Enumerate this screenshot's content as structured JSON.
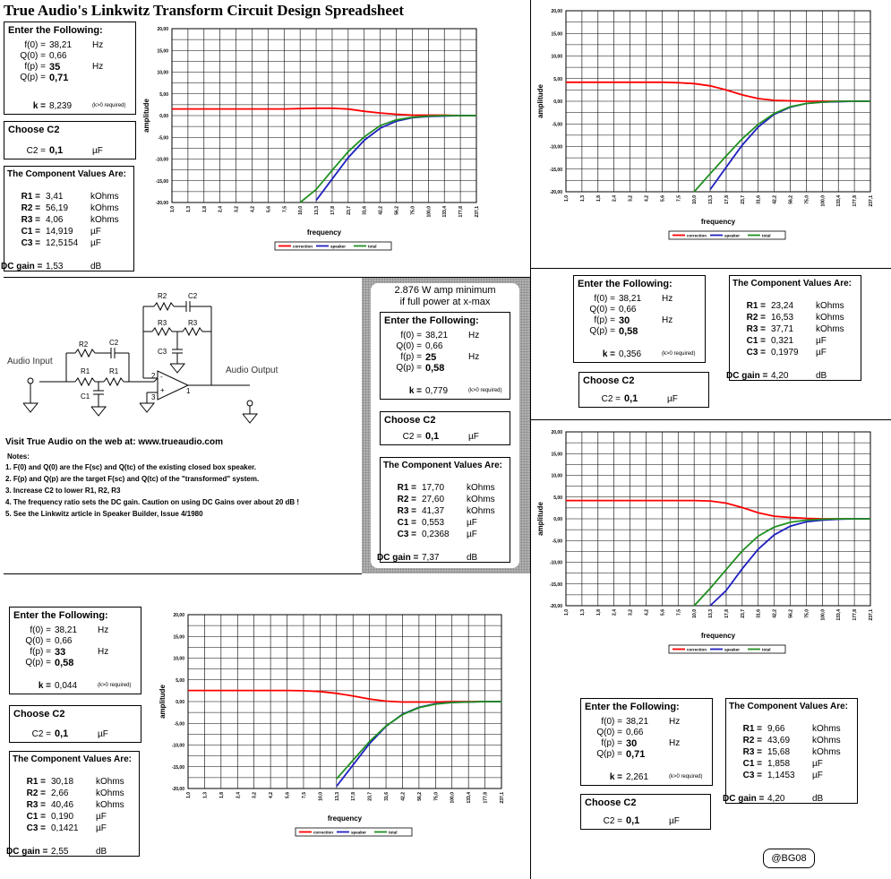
{
  "title": "True Audio's Linkwitz Transform Circuit Design Spreadsheet",
  "labels": {
    "enter": "Enter the Following:",
    "choose": "Choose C2",
    "components": "The Component Values Are:",
    "f0": "f(0) =",
    "q0": "Q(0) =",
    "fp": "f(p) =",
    "qp": "Q(p) =",
    "k": "k =",
    "k_req": "(k>0 required)",
    "c2": "C2 =",
    "r1": "R1 =",
    "r2": "R2 =",
    "r3": "R3 =",
    "c1": "C1 =",
    "c3": "C3 =",
    "dc": "DC gain =",
    "hz": "Hz",
    "kohm": "kOhms",
    "uf": "µF",
    "db": "dB",
    "xlabel": "frequency",
    "ylabel": "amplitude",
    "legend": [
      "correction",
      "speaker",
      "total"
    ]
  },
  "designs": [
    {
      "f0": "38,21",
      "q0": "0,66",
      "fp": "35",
      "qp": "0,71",
      "k": "8,239",
      "c2": "0,1",
      "r1": "3,41",
      "r2": "56,19",
      "r3": "4,06",
      "c1": "14,919",
      "c3": "12,5154",
      "dc": "1,53"
    },
    {
      "f0": "38,21",
      "q0": "0,66",
      "fp": "25",
      "qp": "0,58",
      "k": "0,779",
      "c2": "0,1",
      "r1": "17,70",
      "r2": "27,60",
      "r3": "41,37",
      "c1": "0,553",
      "c3": "0,2368",
      "dc": "7,37"
    },
    {
      "f0": "38,21",
      "q0": "0,66",
      "fp": "30",
      "qp": "0,58",
      "k": "0,356",
      "c2": "0,1",
      "r1": "23,24",
      "r2": "16,53",
      "r3": "37,71",
      "c1": "0,321",
      "c3": "0,1979",
      "dc": "4,20"
    },
    {
      "f0": "38,21",
      "q0": "0,66",
      "fp": "30",
      "qp": "0,71",
      "k": "2,261",
      "c2": "0,1",
      "r1": "9,66",
      "r2": "43,69",
      "r3": "15,68",
      "c1": "1,858",
      "c3": "1,1453",
      "dc": "4,20"
    },
    {
      "f0": "38,21",
      "q0": "0,66",
      "fp": "33",
      "qp": "0,58",
      "k": "0,044",
      "c2": "0,1",
      "r1": "30,18",
      "r2": "2,66",
      "r3": "40,46",
      "c1": "0,190",
      "c3": "0,1421",
      "dc": "2,55"
    }
  ],
  "amp_note": [
    "2.876 W amp minimum",
    "if full power at x-max"
  ],
  "schematic": {
    "audio_input": "Audio Input",
    "audio_output": "Audio Output",
    "r1": "R1",
    "r2": "R2",
    "r3": "R3",
    "c1": "C1",
    "c2": "C2",
    "c3": "C3",
    "pin2": "2",
    "pin3": "3",
    "pin1": "1",
    "minus": "-",
    "plus": "+"
  },
  "visit": "Visit True Audio on the web at:  www.trueaudio.com",
  "notes_title": "Notes:",
  "notes": [
    "1. F(0) and Q(0) are the F(sc) and Q(tc) of the existing closed box speaker.",
    "2. F(p) and Q(p) are the target F(sc) and Q(tc) of the \"transformed\" system.",
    "3. Increase C2 to lower R1, R2, R3",
    "4. The frequency ratio sets the DC gain. Caution on using DC Gains over about 20 dB !",
    "5. See the Linkwitz article in Speaker Builder, Issue 4/1980"
  ],
  "signature": "@BG08",
  "chart_data": [
    {
      "type": "line",
      "x": [
        "1,0",
        "1,3",
        "1,8",
        "2,4",
        "3,2",
        "4,2",
        "5,6",
        "7,5",
        "10,0",
        "13,3",
        "17,8",
        "23,7",
        "31,6",
        "42,2",
        "56,2",
        "75,0",
        "100,0",
        "133,4",
        "177,8",
        "237,1"
      ],
      "y_ticks": [
        "20,00",
        "15,00",
        "10,00",
        "5,00",
        "0,00",
        "-5,00",
        "-10,00",
        "-15,00",
        "-20,00"
      ],
      "ylim": [
        -20,
        20
      ],
      "xlabel": "frequency",
      "ylabel": "amplitude",
      "series": [
        {
          "name": "correction",
          "values": [
            1.53,
            1.53,
            1.53,
            1.53,
            1.53,
            1.53,
            1.53,
            1.53,
            1.6,
            1.7,
            1.7,
            1.5,
            1.0,
            0.6,
            0.3,
            0.1,
            0.1,
            0.1,
            0,
            0
          ]
        },
        {
          "name": "speaker",
          "values": [
            null,
            null,
            null,
            null,
            null,
            null,
            null,
            null,
            null,
            -19.5,
            -14.6,
            -9.7,
            -5.7,
            -2.9,
            -1.3,
            -0.5,
            -0.2,
            -0.1,
            0,
            0
          ]
        },
        {
          "name": "total",
          "values": [
            null,
            null,
            null,
            null,
            null,
            null,
            null,
            null,
            -20,
            -17,
            -12.6,
            -8.3,
            -4.9,
            -2.3,
            -1.0,
            -0.4,
            -0.1,
            0,
            0,
            0
          ]
        }
      ]
    },
    {
      "type": "line",
      "x": [
        "1,0",
        "1,3",
        "1,8",
        "2,4",
        "3,2",
        "4,2",
        "5,6",
        "7,5",
        "10,0",
        "13,3",
        "17,8",
        "23,7",
        "31,6",
        "42,2",
        "56,2",
        "75,0",
        "100,0",
        "133,4",
        "177,8",
        "237,1"
      ],
      "y_ticks": [
        "20,00",
        "15,00",
        "10,00",
        "5,00",
        "0,00",
        "-5,00",
        "-10,00",
        "-15,00",
        "-20,00"
      ],
      "ylim": [
        -20,
        20
      ],
      "xlabel": "frequency",
      "ylabel": "amplitude",
      "series": [
        {
          "name": "correction",
          "values": [
            4.2,
            4.2,
            4.2,
            4.2,
            4.2,
            4.2,
            4.2,
            4.1,
            3.9,
            3.4,
            2.5,
            1.4,
            0.6,
            0.2,
            0.1,
            0,
            0,
            0,
            0,
            0
          ]
        },
        {
          "name": "speaker",
          "values": [
            null,
            null,
            null,
            null,
            null,
            null,
            null,
            null,
            null,
            -19.5,
            -14.6,
            -9.7,
            -5.7,
            -2.9,
            -1.3,
            -0.5,
            -0.2,
            -0.1,
            0,
            0
          ]
        },
        {
          "name": "total",
          "values": [
            null,
            null,
            null,
            null,
            null,
            null,
            null,
            null,
            -20,
            -16,
            -12.1,
            -8.3,
            -5.1,
            -2.7,
            -1.2,
            -0.5,
            -0.2,
            0,
            0,
            0
          ]
        }
      ]
    },
    {
      "type": "line",
      "x": [
        "1,0",
        "1,3",
        "1,8",
        "2,4",
        "3,2",
        "4,2",
        "5,6",
        "7,5",
        "10,0",
        "13,3",
        "17,8",
        "23,7",
        "31,6",
        "42,2",
        "56,2",
        "75,0",
        "100,0",
        "133,4",
        "177,8",
        "237,1"
      ],
      "y_ticks": [
        "20,00",
        "15,00",
        "10,00",
        "5,00",
        "0,00",
        "-5,00",
        "-10,00",
        "-15,00",
        "-20,00"
      ],
      "ylim": [
        -20,
        20
      ],
      "xlabel": "frequency",
      "ylabel": "amplitude",
      "series": [
        {
          "name": "correction",
          "values": [
            4.2,
            4.2,
            4.2,
            4.2,
            4.2,
            4.2,
            4.2,
            4.2,
            4.2,
            4.1,
            3.6,
            2.6,
            1.4,
            0.6,
            0.3,
            0.1,
            0,
            0,
            0,
            0
          ]
        },
        {
          "name": "speaker",
          "values": [
            null,
            null,
            null,
            null,
            null,
            null,
            null,
            null,
            null,
            -20,
            -16.5,
            -11.5,
            -7.0,
            -3.7,
            -1.7,
            -0.7,
            -0.3,
            -0.1,
            0,
            0
          ]
        },
        {
          "name": "total",
          "values": [
            null,
            null,
            null,
            null,
            null,
            null,
            null,
            null,
            -20,
            -16,
            -11.7,
            -7.4,
            -4.0,
            -1.9,
            -0.8,
            -0.3,
            -0.1,
            0,
            0,
            0
          ]
        }
      ]
    },
    {
      "type": "line",
      "x": [
        "1,0",
        "1,3",
        "1,8",
        "2,4",
        "3,2",
        "4,2",
        "5,6",
        "7,5",
        "10,0",
        "13,3",
        "17,8",
        "23,7",
        "31,6",
        "42,2",
        "56,2",
        "75,0",
        "100,0",
        "133,4",
        "177,8",
        "237,1"
      ],
      "y_ticks": [
        "20,00",
        "15,00",
        "10,00",
        "5,00",
        "0,00",
        "-5,00",
        "-10,00",
        "-15,00",
        "-20,00"
      ],
      "ylim": [
        -20,
        20
      ],
      "xlabel": "frequency",
      "ylabel": "amplitude",
      "series": [
        {
          "name": "correction",
          "values": [
            2.55,
            2.55,
            2.55,
            2.55,
            2.55,
            2.55,
            2.55,
            2.5,
            2.3,
            1.9,
            1.3,
            0.6,
            0.1,
            -0.1,
            -0.1,
            -0.1,
            0,
            0,
            0,
            0
          ]
        },
        {
          "name": "speaker",
          "values": [
            null,
            null,
            null,
            null,
            null,
            null,
            null,
            null,
            null,
            -19.5,
            -14.6,
            -9.7,
            -5.7,
            -2.9,
            -1.3,
            -0.5,
            -0.2,
            -0.1,
            0,
            0
          ]
        },
        {
          "name": "total",
          "values": [
            null,
            null,
            null,
            null,
            null,
            null,
            null,
            null,
            null,
            -17.8,
            -13.5,
            -9.2,
            -5.6,
            -3.0,
            -1.4,
            -0.6,
            -0.2,
            -0.1,
            0,
            0
          ]
        }
      ]
    }
  ]
}
